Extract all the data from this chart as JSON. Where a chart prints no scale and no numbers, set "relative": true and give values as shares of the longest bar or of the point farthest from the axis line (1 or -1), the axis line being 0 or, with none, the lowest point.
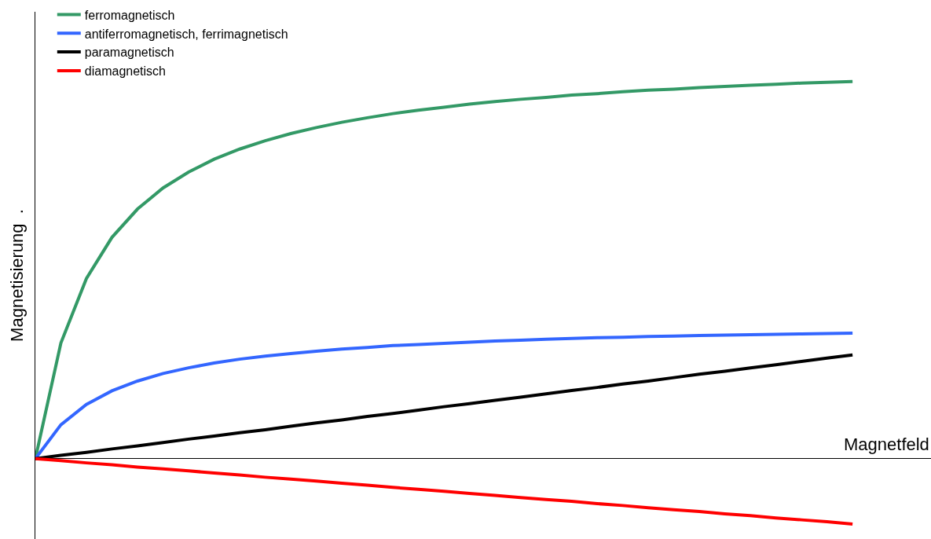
{
  "chart_data": {
    "type": "line",
    "relative": true,
    "xlabel": "Magnetfeld",
    "ylabel": "Magnetisierung  .",
    "legend": "top left",
    "marker": "none",
    "line_style": "solid",
    "categories": [
      null,
      null,
      null,
      null,
      null,
      null,
      null,
      null,
      null,
      null,
      null,
      null,
      null,
      null,
      null,
      null,
      null,
      null,
      null,
      null,
      null,
      null,
      null,
      null,
      null,
      null,
      null,
      null,
      null,
      null,
      null,
      null,
      null
    ],
    "series": [
      {
        "name": "ferromagnetisch",
        "color": "#339966",
        "values": [
          0,
          0.307,
          0.478,
          0.587,
          0.662,
          0.718,
          0.76,
          0.794,
          0.821,
          0.843,
          0.862,
          0.878,
          0.892,
          0.904,
          0.915,
          0.924,
          0.932,
          0.94,
          0.947,
          0.953,
          0.958,
          0.964,
          0.968,
          0.973,
          0.977,
          0.98,
          0.984,
          0.987,
          0.99,
          0.993,
          0.996,
          0.998,
          1.0
        ]
      },
      {
        "name": "antiferromagnetisch, ferrimagnetisch",
        "color": "#3366ff",
        "values": [
          0,
          0.09,
          0.144,
          0.18,
          0.206,
          0.226,
          0.241,
          0.254,
          0.264,
          0.272,
          0.279,
          0.285,
          0.291,
          0.295,
          0.3,
          0.303,
          0.306,
          0.309,
          0.312,
          0.314,
          0.317,
          0.319,
          0.321,
          0.322,
          0.324,
          0.325,
          0.327,
          0.328,
          0.329,
          0.33,
          0.331,
          0.332,
          0.333
        ]
      },
      {
        "name": "paramagnetisch",
        "color": "#000000",
        "values": [
          0,
          0.009,
          0.017,
          0.026,
          0.034,
          0.043,
          0.052,
          0.06,
          0.069,
          0.077,
          0.086,
          0.095,
          0.103,
          0.112,
          0.12,
          0.129,
          0.138,
          0.146,
          0.155,
          0.163,
          0.172,
          0.181,
          0.189,
          0.198,
          0.206,
          0.215,
          0.224,
          0.232,
          0.241,
          0.249,
          0.258,
          0.267,
          0.275
        ]
      },
      {
        "name": "diamagnetisch",
        "color": "#ff0000",
        "values": [
          0,
          -0.005,
          -0.011,
          -0.016,
          -0.022,
          -0.027,
          -0.032,
          -0.038,
          -0.043,
          -0.049,
          -0.054,
          -0.059,
          -0.065,
          -0.07,
          -0.076,
          -0.081,
          -0.086,
          -0.092,
          -0.097,
          -0.103,
          -0.108,
          -0.113,
          -0.119,
          -0.124,
          -0.13,
          -0.135,
          -0.14,
          -0.146,
          -0.151,
          -0.157,
          -0.162,
          -0.167,
          -0.173
        ]
      }
    ]
  }
}
